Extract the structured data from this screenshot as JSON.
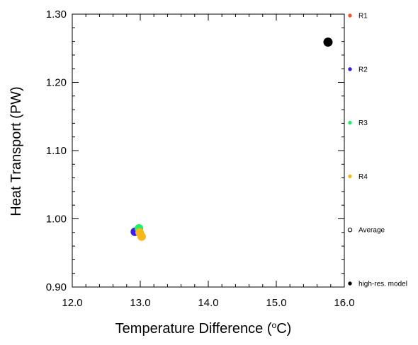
{
  "chart_data": {
    "type": "scatter",
    "xlabel": "Temperature Difference (",
    "xlabel_sup": "o",
    "xlabel_unit": "C)",
    "ylabel": "Heat Transport (PW)",
    "xlim": [
      12.0,
      16.0
    ],
    "ylim": [
      0.9,
      1.3
    ],
    "x_ticks": [
      "12.0",
      "13.0",
      "14.0",
      "15.0",
      "16.0"
    ],
    "y_ticks": [
      "0.90",
      "1.00",
      "1.10",
      "1.20",
      "1.30"
    ],
    "x_minor_step": 0.2,
    "y_minor_step": 0.02,
    "grid": false,
    "legend_placement": "right",
    "series": [
      {
        "name": "R1",
        "color": "#ee5a26",
        "marker": "filled-circle",
        "points": []
      },
      {
        "name": "R2",
        "color": "#3a1ee6",
        "marker": "filled-circle",
        "points": [
          [
            12.92,
            0.981
          ]
        ]
      },
      {
        "name": "R3",
        "color": "#22ee66",
        "marker": "filled-circle",
        "points": [
          [
            12.98,
            0.986
          ]
        ]
      },
      {
        "name": "R4",
        "color": "#f6b81a",
        "marker": "filled-circle",
        "points": [
          [
            12.99,
            0.98
          ],
          [
            13.02,
            0.974
          ]
        ]
      },
      {
        "name": "Average",
        "color": "#000000",
        "marker": "open-circle",
        "points": []
      },
      {
        "name": "high-res. model",
        "color": "#000000",
        "marker": "filled-circle",
        "points": [
          [
            15.76,
            1.259
          ]
        ]
      }
    ]
  }
}
